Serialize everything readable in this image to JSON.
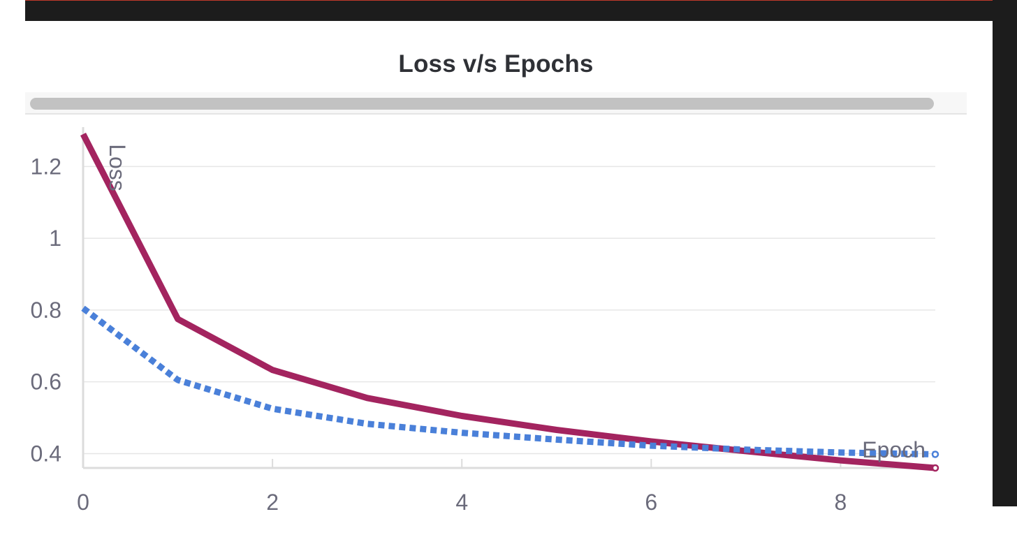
{
  "chart_data": {
    "type": "line",
    "title": "Loss v/s Epochs",
    "xlabel": "Epoch",
    "ylabel": "Loss",
    "xlim": [
      0,
      9
    ],
    "ylim": [
      0.36,
      1.3
    ],
    "x_ticks": [
      0,
      2,
      4,
      6,
      8
    ],
    "x_tick_labels": [
      "0",
      "2",
      "4",
      "6",
      "8"
    ],
    "y_ticks": [
      0.4,
      0.6,
      0.8,
      1.0,
      1.2
    ],
    "y_tick_labels": [
      "0.4",
      "0.6",
      "0.8",
      "1",
      "1.2"
    ],
    "grid": true,
    "x": [
      0,
      1,
      2,
      3,
      4,
      5,
      6,
      7,
      8,
      9
    ],
    "series": [
      {
        "color": "#a3245f",
        "style": "solid",
        "values": [
          1.29,
          0.775,
          0.633,
          0.555,
          0.505,
          0.466,
          0.434,
          0.407,
          0.381,
          0.36
        ]
      },
      {
        "color": "#4a80d9",
        "style": "dotted",
        "values": [
          0.805,
          0.605,
          0.525,
          0.483,
          0.458,
          0.439,
          0.422,
          0.411,
          0.403,
          0.398
        ]
      }
    ]
  },
  "scrollbar": {
    "label": "horizontal-scrollbar"
  }
}
